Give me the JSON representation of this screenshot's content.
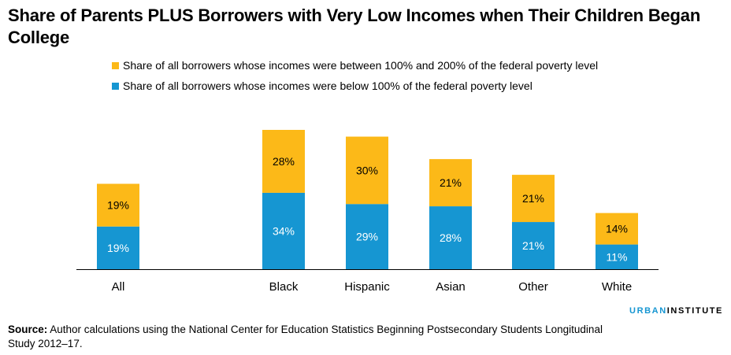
{
  "title": "Share of Parents PLUS Borrowers with Very Low Incomes when Their Children Began College",
  "colors": {
    "upper": "#fcb918",
    "lower": "#1696d2",
    "axis": "#000000",
    "label": "#ffffff"
  },
  "legend": [
    {
      "label": "Share of all borrowers whose incomes were between 100% and 200% of the federal poverty level",
      "color": "#fcb918"
    },
    {
      "label": "Share of all borrowers whose incomes were below 100% of the federal poverty level",
      "color": "#1696d2"
    }
  ],
  "chart_data": {
    "type": "bar",
    "stacked": true,
    "categories": [
      "All",
      "Black",
      "Hispanic",
      "Asian",
      "Other",
      "White"
    ],
    "series": [
      {
        "name": "Share of all borrowers whose incomes were below 100% of the federal poverty level",
        "values": [
          19,
          34,
          29,
          28,
          21,
          11
        ],
        "labels": [
          "19%",
          "34%",
          "29%",
          "28%",
          "21%",
          "11%"
        ]
      },
      {
        "name": "Share of all borrowers whose incomes were between 100% and 200% of the federal poverty level",
        "values": [
          19,
          28,
          30,
          21,
          21,
          14
        ],
        "labels": [
          "19%",
          "28%",
          "30%",
          "21%",
          "21%",
          "14%"
        ]
      }
    ],
    "ylim": [
      0,
      62
    ],
    "grid": false,
    "legend_position": "top-left"
  },
  "source": {
    "label": "Source:",
    "text": " Author calculations using the National Center for Education Statistics Beginning Postsecondary Students Longitudinal Study 2012–17."
  },
  "brand": {
    "part1": "URBAN",
    "part2": "INSTITUTE"
  }
}
